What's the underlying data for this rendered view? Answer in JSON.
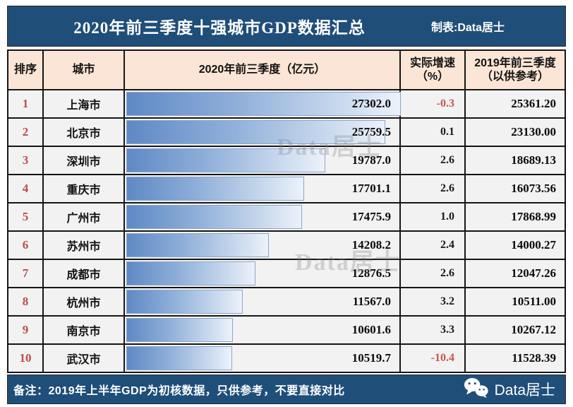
{
  "title_bar": {
    "title": "2020年前三季度十强城市GDP数据汇总",
    "credit": "制表:Data居士"
  },
  "table": {
    "headers": {
      "rank": "排序",
      "city": "城市",
      "gdp2020": "2020年前三季度（亿元）",
      "growth": "实际增速\n（%）",
      "gdp2019": "2019年前三季度\n（以供参考）"
    },
    "rows": [
      {
        "rank": "1",
        "city": "上海市",
        "gdp2020": "27302.0",
        "growth": "-0.3",
        "gdp2019": "25361.20"
      },
      {
        "rank": "2",
        "city": "北京市",
        "gdp2020": "25759.5",
        "growth": "0.1",
        "gdp2019": "23130.00"
      },
      {
        "rank": "3",
        "city": "深圳市",
        "gdp2020": "19787.0",
        "growth": "2.6",
        "gdp2019": "18689.13"
      },
      {
        "rank": "4",
        "city": "重庆市",
        "gdp2020": "17701.1",
        "growth": "2.6",
        "gdp2019": "16073.56"
      },
      {
        "rank": "5",
        "city": "广州市",
        "gdp2020": "17475.9",
        "growth": "1.0",
        "gdp2019": "17868.99"
      },
      {
        "rank": "6",
        "city": "苏州市",
        "gdp2020": "14208.2",
        "growth": "2.4",
        "gdp2019": "14000.27"
      },
      {
        "rank": "7",
        "city": "成都市",
        "gdp2020": "12876.5",
        "growth": "2.6",
        "gdp2019": "12047.26"
      },
      {
        "rank": "8",
        "city": "杭州市",
        "gdp2020": "11567.0",
        "growth": "3.2",
        "gdp2019": "10511.00"
      },
      {
        "rank": "9",
        "city": "南京市",
        "gdp2020": "10601.6",
        "growth": "3.3",
        "gdp2019": "10267.12"
      },
      {
        "rank": "10",
        "city": "武汉市",
        "gdp2020": "10519.7",
        "growth": "-10.4",
        "gdp2019": "11528.39"
      }
    ]
  },
  "footer": {
    "note": "备注：2019年上半年GDP为初核数据，只供参考，不要直接对比",
    "brand": "Data居士",
    "brand_icon": "wechat-icon"
  },
  "watermarks": {
    "wm1": "Data居士",
    "wm2": "Data居士"
  },
  "colors": {
    "band_blue": "#1F4E79",
    "header_peach": "#FBE5D6",
    "cell_gray": "#F2F2F2",
    "rank_red": "#BE4B48",
    "negative_red": "#C9544E",
    "bar_border": "#8CA6CB",
    "bar_gradient_start": "#5F89C5",
    "bar_gradient_end": "#ECF2FA"
  },
  "chart_data": {
    "type": "bar",
    "orientation": "horizontal",
    "title": "2020年前三季度十强城市GDP数据汇总",
    "categories": [
      "上海市",
      "北京市",
      "深圳市",
      "重庆市",
      "广州市",
      "苏州市",
      "成都市",
      "杭州市",
      "南京市",
      "武汉市"
    ],
    "series": [
      {
        "name": "2020年前三季度（亿元）",
        "values": [
          27302.0,
          25759.5,
          19787.0,
          17701.1,
          17475.9,
          14208.2,
          12876.5,
          11567.0,
          10601.6,
          10519.7
        ]
      },
      {
        "name": "实际增速（%）",
        "values": [
          -0.3,
          0.1,
          2.6,
          2.6,
          1.0,
          2.4,
          2.6,
          3.2,
          3.3,
          -10.4
        ]
      },
      {
        "name": "2019年前三季度（以供参考）",
        "values": [
          25361.2,
          23130.0,
          18689.13,
          16073.56,
          17868.99,
          14000.27,
          12047.26,
          10511.0,
          10267.12,
          11528.39
        ]
      }
    ],
    "xlim": [
      0,
      27302
    ],
    "grid": false,
    "legend_position": "none",
    "note": "备注：2019年上半年GDP为初核数据，只供参考，不要直接对比"
  }
}
